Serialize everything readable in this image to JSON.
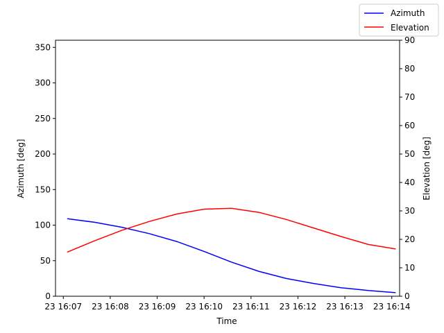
{
  "chart_data": {
    "type": "line",
    "xlabel": "Time",
    "ylabel_left": "Azimuth [deg]",
    "ylabel_right": "Elevation [deg]",
    "xlim": [
      "23 16:06:50",
      "23 16:14:10"
    ],
    "ylim_left": [
      0,
      360
    ],
    "ylim_right": [
      0,
      90
    ],
    "x_ticks": [
      "23 16:07",
      "23 16:08",
      "23 16:09",
      "23 16:10",
      "23 16:11",
      "23 16:12",
      "23 16:13",
      "23 16:14"
    ],
    "y_ticks_left": [
      "0",
      "50",
      "100",
      "150",
      "200",
      "250",
      "300",
      "350"
    ],
    "y_ticks_right": [
      "0",
      "10",
      "20",
      "30",
      "40",
      "50",
      "60",
      "70",
      "80",
      "90"
    ],
    "grid": false,
    "legend_position": "top-right",
    "x": [
      "23 16:07:05",
      "23 16:07:40",
      "23 16:08:15",
      "23 16:08:50",
      "23 16:09:25",
      "23 16:10:00",
      "23 16:10:35",
      "23 16:11:10",
      "23 16:11:45",
      "23 16:12:20",
      "23 16:12:55",
      "23 16:13:30",
      "23 16:14:05"
    ],
    "series": [
      {
        "name": "Azimuth",
        "axis": "left",
        "color": "#0000ff",
        "values": [
          109,
          104,
          97,
          88,
          77,
          63,
          48,
          35,
          25,
          18,
          12,
          8,
          5
        ]
      },
      {
        "name": "Elevation",
        "axis": "right",
        "color": "#ff0000",
        "values": [
          15.5,
          19.5,
          23.2,
          26.3,
          28.9,
          30.6,
          30.9,
          29.5,
          27.0,
          24.0,
          21.0,
          18.2,
          16.6
        ]
      }
    ]
  }
}
